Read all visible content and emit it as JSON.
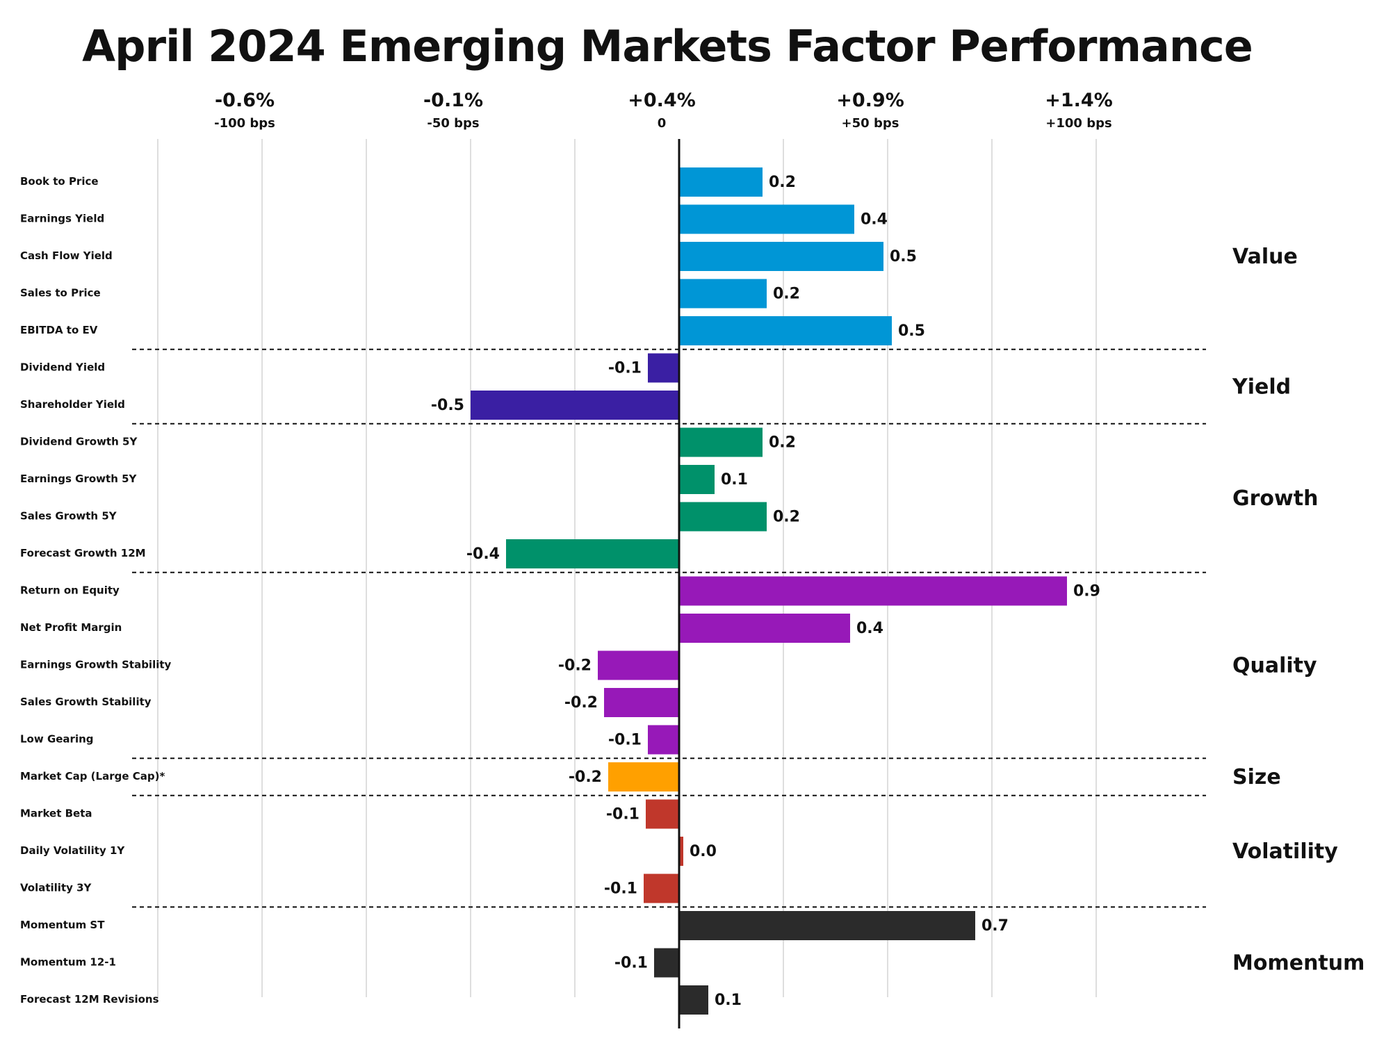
{
  "chart_data": {
    "type": "bar",
    "orientation": "horizontal",
    "title": "April 2024 Emerging Markets Factor Performance",
    "xlim": [
      -125,
      125
    ],
    "grid": true,
    "top_axis_ticks": [
      {
        "pct": "-0.6%",
        "bps": "-100 bps",
        "value": -100
      },
      {
        "pct": "-0.1%",
        "bps": "-50 bps",
        "value": -50
      },
      {
        "pct": "+0.4%",
        "bps": "0",
        "value": 0
      },
      {
        "pct": "+0.9%",
        "bps": "+50 bps",
        "value": 50
      },
      {
        "pct": "+1.4%",
        "bps": "+100 bps",
        "value": 100
      }
    ],
    "groups": [
      {
        "name": "Value",
        "color": "#0096d6",
        "factors": [
          {
            "label": "Book to Price",
            "value": 0.2,
            "bar": 20
          },
          {
            "label": "Earnings Yield",
            "value": 0.4,
            "bar": 42
          },
          {
            "label": "Cash Flow Yield",
            "value": 0.5,
            "bar": 49
          },
          {
            "label": "Sales to Price",
            "value": 0.2,
            "bar": 21
          },
          {
            "label": "EBITDA to EV",
            "value": 0.5,
            "bar": 51
          }
        ]
      },
      {
        "name": "Yield",
        "color": "#3a1fa3",
        "factors": [
          {
            "label": "Dividend Yield",
            "value": -0.1,
            "bar": -7.5
          },
          {
            "label": "Shareholder Yield",
            "value": -0.5,
            "bar": -50
          }
        ]
      },
      {
        "name": "Growth",
        "color": "#00916a",
        "factors": [
          {
            "label": "Dividend Growth 5Y",
            "value": 0.2,
            "bar": 20
          },
          {
            "label": "Earnings Growth 5Y",
            "value": 0.1,
            "bar": 8.5
          },
          {
            "label": "Sales Growth 5Y",
            "value": 0.2,
            "bar": 21
          },
          {
            "label": "Forecast Growth 12M",
            "value": -0.4,
            "bar": -41.5
          }
        ]
      },
      {
        "name": "Quality",
        "color": "#9719b8",
        "factors": [
          {
            "label": "Return on Equity",
            "value": 0.9,
            "bar": 93
          },
          {
            "label": "Net Profit Margin",
            "value": 0.4,
            "bar": 41
          },
          {
            "label": "Earnings Growth Stability",
            "value": -0.2,
            "bar": -19.5
          },
          {
            "label": "Sales Growth Stability",
            "value": -0.2,
            "bar": -18
          },
          {
            "label": "Low Gearing",
            "value": -0.1,
            "bar": -7.5
          }
        ]
      },
      {
        "name": "Size",
        "color": "#ffa000",
        "factors": [
          {
            "label": "Market Cap (Large Cap)*",
            "value": -0.2,
            "bar": -17
          }
        ]
      },
      {
        "name": "Volatility",
        "color": "#c0372b",
        "factors": [
          {
            "label": "Market Beta",
            "value": -0.1,
            "bar": -8
          },
          {
            "label": "Daily Volatility 1Y",
            "value": 0.0,
            "bar": 1
          },
          {
            "label": "Volatility 3Y",
            "value": -0.1,
            "bar": -8.5
          }
        ]
      },
      {
        "name": "Momentum",
        "color": "#2b2b2b",
        "factors": [
          {
            "label": "Momentum ST",
            "value": 0.7,
            "bar": 71
          },
          {
            "label": "Momentum 12-1",
            "value": -0.1,
            "bar": -6
          },
          {
            "label": "Forecast 12M Revisions",
            "value": 0.1,
            "bar": 7
          }
        ]
      }
    ]
  }
}
